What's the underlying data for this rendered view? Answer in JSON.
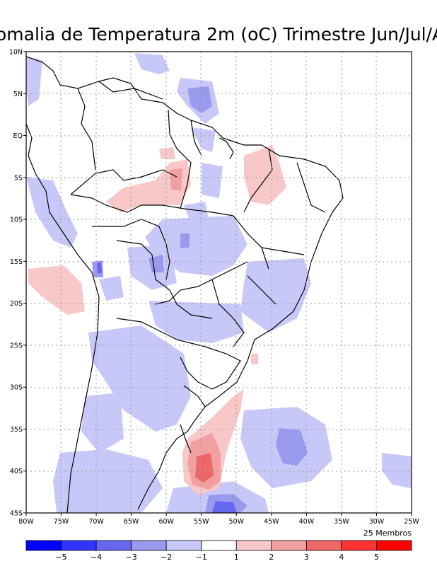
{
  "title": "omalia de Temperatura 2m (oC) Trimestre Jun/Jul/A",
  "members_note": "25 Membros",
  "y_ticks": [
    "10N",
    "5N",
    "EQ",
    "5S",
    "10S",
    "15S",
    "20S",
    "25S",
    "30S",
    "35S",
    "40S",
    "45S"
  ],
  "x_ticks": [
    "80W",
    "75W",
    "70W",
    "65W",
    "60W",
    "55W",
    "50W",
    "45W",
    "40W",
    "35W",
    "30W",
    "25W"
  ],
  "colorbar": {
    "colors": [
      "#0000ff",
      "#3333ff",
      "#6666ee",
      "#9999ee",
      "#c8c8f8",
      "#ffffff",
      "#f8c8c8",
      "#f0a0a0",
      "#ee6666",
      "#ff3333",
      "#ff0000"
    ],
    "labels": [
      "−5",
      "−4",
      "−3",
      "−2",
      "−1",
      "1",
      "2",
      "3",
      "4",
      "5"
    ]
  }
}
